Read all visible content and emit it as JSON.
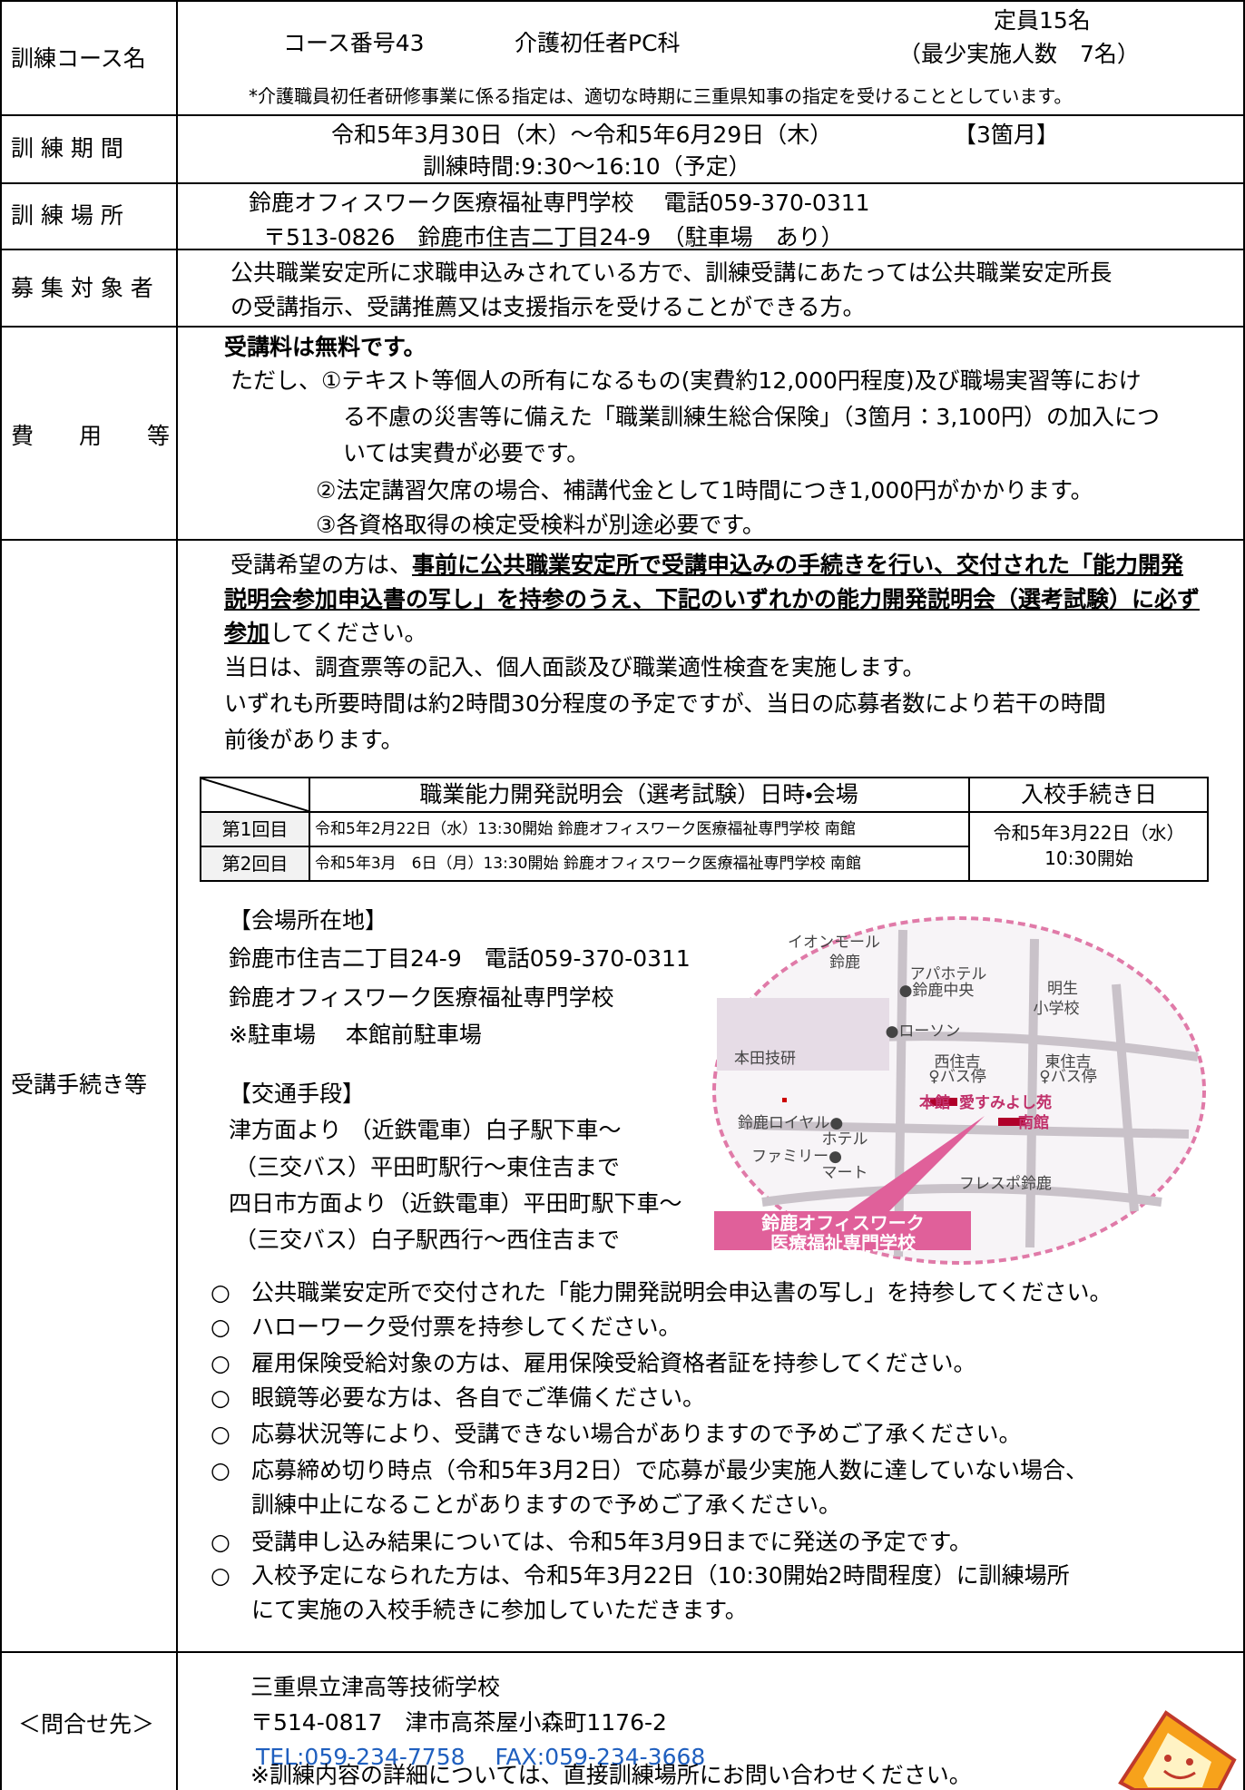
{
  "course": {
    "label": "訓練コース名",
    "number": "コース番号43",
    "name": "介護初任者PC科",
    "capacity": "定員15名",
    "minimum": "（最少実施人数　7名）",
    "note": "*介護職員初任者研修事業に係る指定は、適切な時期に三重県知事の指定を受けることとしています。"
  },
  "period": {
    "label": "訓 練 期 間",
    "dates": "令和5年3月30日（木）～令和5年6月29日（木）",
    "duration": "【3箇月】",
    "hours": "訓練時間:9:30～16:10（予定）"
  },
  "place": {
    "label": "訓 練 場 所",
    "lines": [
      "鈴鹿オフィスワーク医療福祉専門学校　 電話059-370-0311",
      "〒513-0826　鈴鹿市住吉二丁目24-9　（駐車場　あり）"
    ]
  },
  "target": {
    "label": "募 集 対 象 者",
    "lines": [
      "公共職業安定所に求職申込みされている方で、訓練受講にあたっては公共職業安定所長",
      "の受講指示、受講推薦又は支援指示を受けることができる方。"
    ]
  },
  "fee": {
    "label": "費　　用　　等",
    "lines": [
      "受講料は無料です。",
      "ただし、①テキスト等個人の所有になるもの(実費約12,000円程度)及び職場実習等におけ",
      "る不慮の災害等に備えた「職業訓練生総合保険」（3箇月：3,100円）の加入につ",
      "いては実費が必要です。",
      "②法定講習欠席の場合、補講代金として1時間につき1,000円がかかります。",
      "③各資格取得の検定受検料が別途必要です。"
    ]
  },
  "procedure": {
    "label": "受講手続き等",
    "intro": [
      "受講希望の方は、",
      "事前に公共職業安定所で受講申込みの手続きを行い、交付された「能力開発",
      "説明会参加申込書の写し」を持参のうえ、下記のいずれかの能力開発説明会（選考試験）に必ず",
      "参加",
      "してください。",
      "当日は、調査票等の記入、個人面談及び職業適性検査を実施します。",
      "いずれも所要時間は約2時間30分程度の予定ですが、当日の応募者数により若干の時間",
      "前後があります。"
    ],
    "table": {
      "header": [
        "職業能力開発説明会（選考試験）日時・会場",
        "入校手続き日"
      ],
      "rows": [
        [
          "第1回目",
          "令和5年2月22日（水）13:30開始 鈴鹿オフィスワーク医療福祉専門学校 南館"
        ],
        [
          "第2回目",
          "令和5年3月　6日（月）13:30開始 鈴鹿オフィスワーク医療福祉専門学校 南館"
        ]
      ],
      "enrollment": [
        "令和5年3月22日（水）",
        "10:30開始"
      ]
    },
    "venue": [
      "【会場所在地】",
      "鈴鹿市住吉二丁目24-9　電話059-370-0311",
      "鈴鹿オフィスワーク医療福祉専門学校",
      "※駐車場　 本館前駐車場"
    ],
    "transport": [
      "【交通手段】",
      "津方面より （近鉄電車）白子駅下車～",
      "（三交バス）平田町駅行～東住吉まで",
      "四日市方面より（近鉄電車）平田町駅下車～",
      "（三交バス）白子駅西行～西住吉まで"
    ],
    "map": [
      "イオンモール",
      "鈴鹿",
      "アパホテル",
      "●鈴鹿中央",
      "明生",
      "小学校",
      "●ローソン",
      "本田技研",
      "西住吉",
      "♀バス停",
      "東住吉",
      "♀バス停",
      "本館",
      "愛すみよし苑",
      "南館",
      "鈴鹿ロイヤル●",
      "ホテル",
      "ファミリー●",
      "マート",
      "フレスポ鈴鹿",
      "鈴鹿オフィスワーク",
      "医療福祉専門学校"
    ],
    "bullet": "○",
    "notes": [
      "公共職業安定所で交付された「能力開発説明会申込書の写し」を持参してください。",
      "ハローワーク受付票を持参してください。",
      "雇用保険受給対象の方は、雇用保険受給資格者証を持参してください。",
      "眼鏡等必要な方は、各自でご準備ください。",
      "応募状況等により、受講できない場合がありますので予めご了承ください。",
      "応募締め切り時点（令和5年3月2日）で応募が最少実施人数に達していない場合、",
      "訓練中止になることがありますので予めご了承ください。",
      "受講申し込み結果については、令和5年3月9日までに発送の予定です。",
      "入校予定になられた方は、令和5年3月22日（10:30開始2時間程度）に訓練場所",
      "にて実施の入校手続きに参加していただきます。"
    ]
  },
  "contact": {
    "label": "＜問合せ先＞",
    "lines": [
      "三重県立津高等技術学校",
      "〒514-0817　津市高茶屋小森町1176-2",
      "TEL:059-234-7758　 FAX:059-234-3668",
      "※訓練内容の詳細については、直接訓練場所にお問い合わせください。"
    ]
  }
}
